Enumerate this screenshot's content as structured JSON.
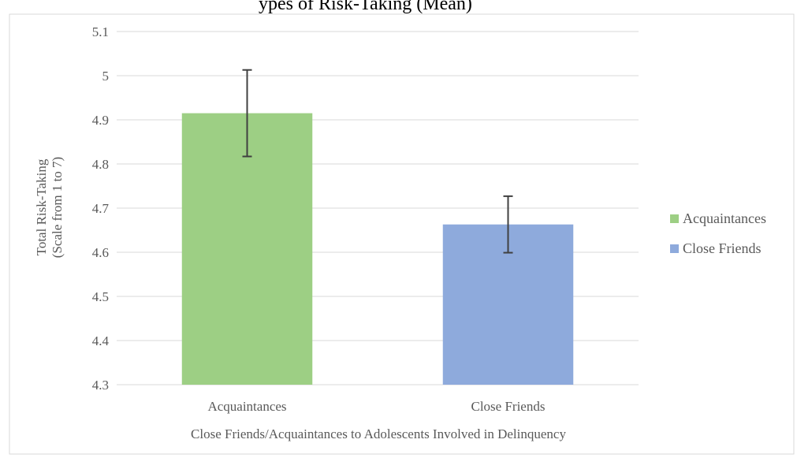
{
  "chart_data": {
    "type": "bar",
    "title_visible_fragment": "ypes of Risk-Taking (Mean)",
    "categories": [
      "Acquaintances",
      "Close Friends"
    ],
    "values": [
      4.915,
      4.663
    ],
    "error_upper": [
      5.013,
      4.727
    ],
    "error_lower": [
      4.817,
      4.599
    ],
    "colors": [
      "#9dcf84",
      "#8eaadc"
    ],
    "series_names": [
      "Acquaintances",
      "Close Friends"
    ],
    "xlabel": "Close Friends/Acquaintances to Adolescents Involved in Delinquency",
    "ylabel_lines": [
      "Total Risk-Taking",
      "(Scale from 1 to 7)"
    ],
    "ylim": [
      4.3,
      5.1
    ],
    "yticks": [
      "5.1",
      "5",
      "4.9",
      "4.8",
      "4.7",
      "4.6",
      "4.5",
      "4.4",
      "4.3"
    ],
    "ytick_values": [
      5.1,
      5.0,
      4.9,
      4.8,
      4.7,
      4.6,
      4.5,
      4.4,
      4.3
    ],
    "grid": true,
    "gridline_color": "#d9d9d9",
    "legend_position": "right",
    "errorbar_color": "#404040"
  }
}
